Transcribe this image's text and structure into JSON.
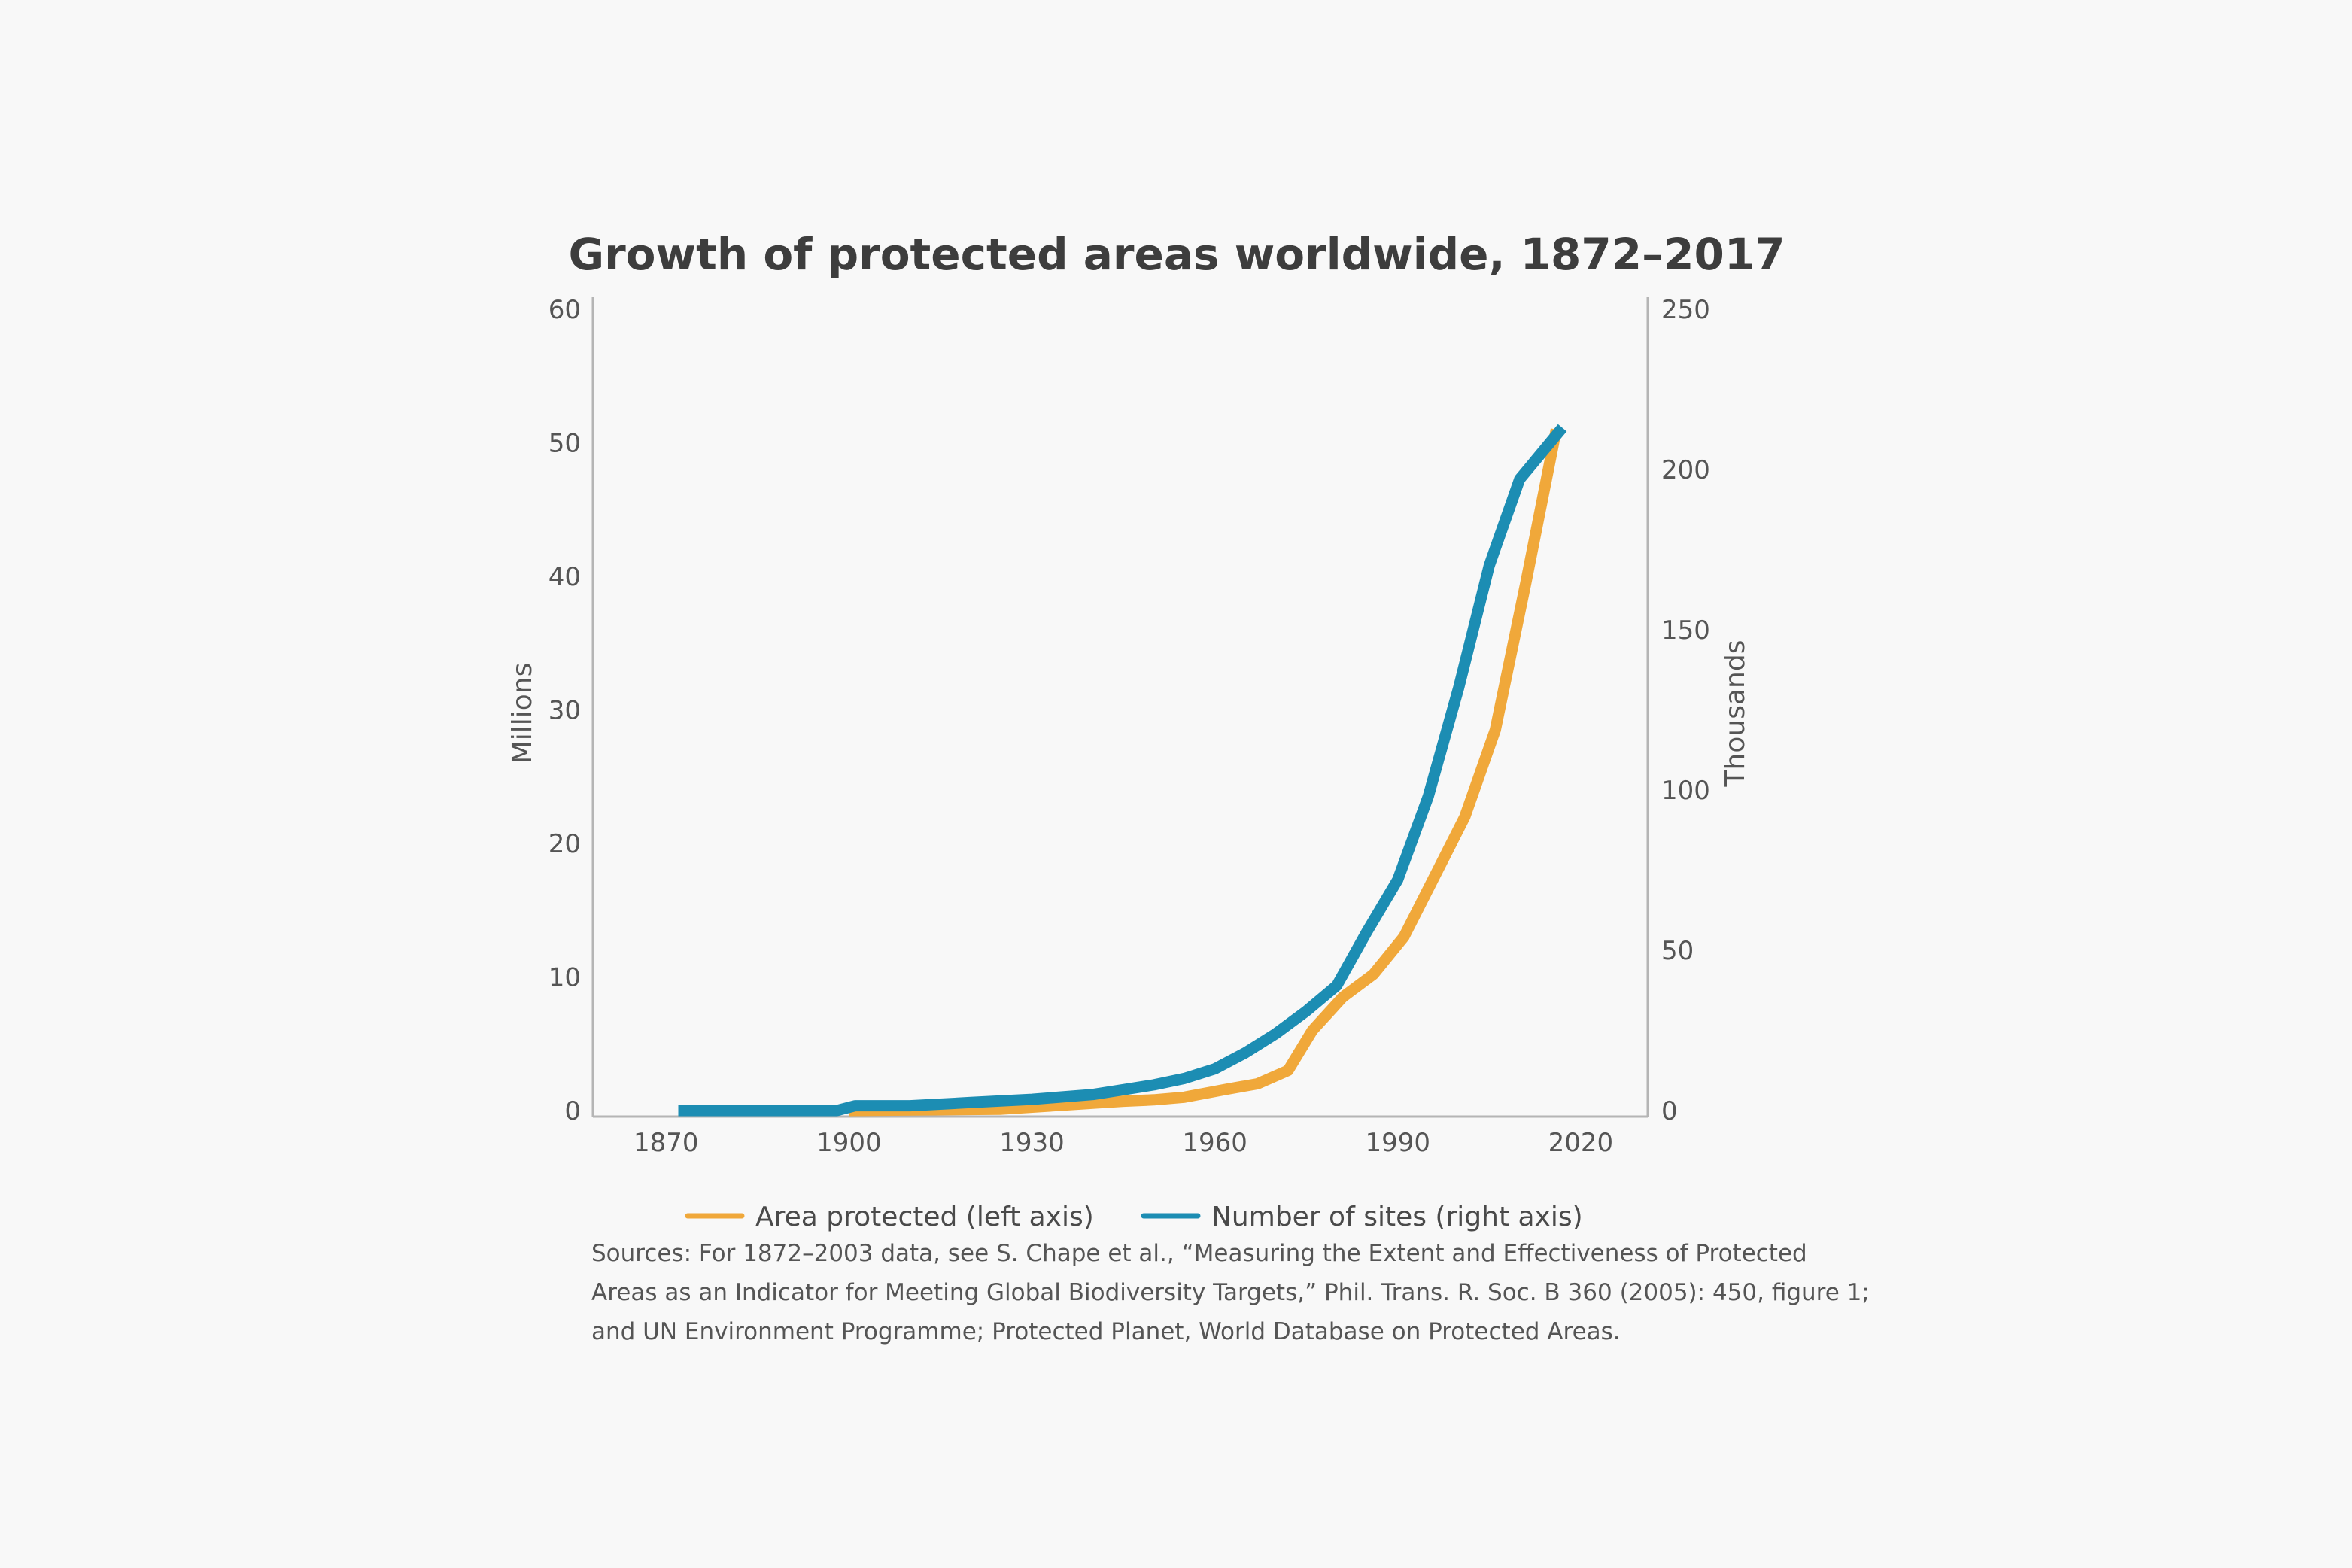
{
  "chart_data": {
    "type": "line",
    "title": "Growth of protected areas worldwide, 1872–2017",
    "xlim": [
      1858,
      2031
    ],
    "x_ticks": [
      1870,
      1900,
      1930,
      1960,
      1990,
      2020
    ],
    "y_left": {
      "label": "Millions",
      "range": [
        0,
        60
      ],
      "ticks": [
        0,
        10,
        20,
        30,
        40,
        50,
        60
      ]
    },
    "y_right": {
      "label": "Thousands",
      "range": [
        0,
        250
      ],
      "ticks": [
        0,
        50,
        100,
        150,
        200,
        250
      ]
    },
    "grid": false,
    "legend_position": "bottom",
    "series": [
      {
        "name": "Area protected (left axis)",
        "axis": "left",
        "color": "#f0a83a",
        "x": [
          1900,
          1925,
          1935,
          1945,
          1950,
          1955,
          1962,
          1967,
          1972,
          1976,
          1981,
          1986,
          1991,
          1996,
          2001,
          2006,
          2011,
          2016
        ],
        "values": [
          0,
          0.1,
          0.4,
          0.7,
          0.8,
          1.0,
          1.6,
          2.0,
          3.0,
          6.0,
          8.5,
          10.2,
          13.0,
          17.5,
          22.0,
          28.5,
          39.5,
          51.0
        ]
      },
      {
        "name": "Number of sites (right axis)",
        "axis": "right",
        "color": "#1c8db3",
        "x": [
          1872,
          1880,
          1890,
          1898,
          1901,
          1910,
          1920,
          1930,
          1940,
          1945,
          1950,
          1955,
          1960,
          1965,
          1970,
          1975,
          1980,
          1985,
          1990,
          1995,
          2000,
          2005,
          2010,
          2017
        ],
        "values": [
          0,
          0,
          0,
          0,
          1.5,
          1.5,
          2.5,
          3.5,
          5,
          6.5,
          8,
          10,
          13,
          18,
          24,
          31,
          39,
          56,
          72,
          98,
          132,
          170,
          197,
          213
        ]
      }
    ],
    "sources": "Sources: For 1872–2003 data, see S. Chape et al., “Measuring the Extent and Effectiveness of Protected Areas as an Indicator for Meeting Global Biodiversity Targets,” Phil. Trans. R. Soc. B 360 (2005): 450, figure 1; and UN Environment Programme; Protected Planet, World Database on Protected Areas."
  }
}
